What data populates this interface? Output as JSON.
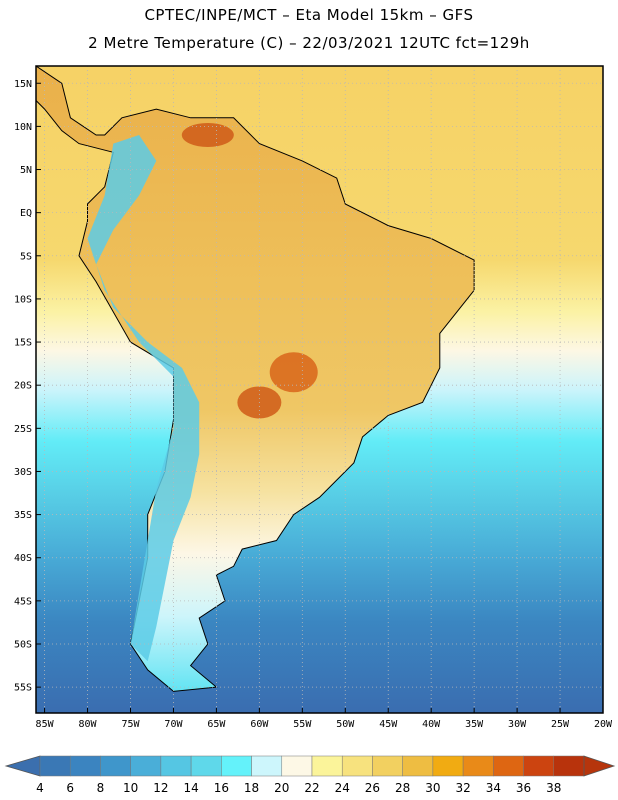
{
  "header": {
    "line1": "CPTEC/INPE/MCT –  Eta Model 15km – GFS",
    "line2": "2 Metre Temperature (C) – 22/03/2021 12UTC fct=129h"
  },
  "map": {
    "lon_range": [
      -86,
      -20
    ],
    "lat_range": [
      -58,
      17
    ],
    "lat_ticks": [
      {
        "v": 15,
        "label": "15N"
      },
      {
        "v": 10,
        "label": "10N"
      },
      {
        "v": 5,
        "label": "5N"
      },
      {
        "v": 0,
        "label": "EQ"
      },
      {
        "v": -5,
        "label": "5S"
      },
      {
        "v": -10,
        "label": "10S"
      },
      {
        "v": -15,
        "label": "15S"
      },
      {
        "v": -20,
        "label": "20S"
      },
      {
        "v": -25,
        "label": "25S"
      },
      {
        "v": -30,
        "label": "30S"
      },
      {
        "v": -35,
        "label": "35S"
      },
      {
        "v": -40,
        "label": "40S"
      },
      {
        "v": -45,
        "label": "45S"
      },
      {
        "v": -50,
        "label": "50S"
      },
      {
        "v": -55,
        "label": "55S"
      }
    ],
    "lon_ticks": [
      {
        "v": -85,
        "label": "85W"
      },
      {
        "v": -80,
        "label": "80W"
      },
      {
        "v": -75,
        "label": "75W"
      },
      {
        "v": -70,
        "label": "70W"
      },
      {
        "v": -65,
        "label": "65W"
      },
      {
        "v": -60,
        "label": "60W"
      },
      {
        "v": -55,
        "label": "55W"
      },
      {
        "v": -50,
        "label": "50W"
      },
      {
        "v": -45,
        "label": "45W"
      },
      {
        "v": -40,
        "label": "40W"
      },
      {
        "v": -35,
        "label": "35W"
      },
      {
        "v": -30,
        "label": "30W"
      },
      {
        "v": -25,
        "label": "25W"
      },
      {
        "v": -20,
        "label": "20W"
      }
    ]
  },
  "colorbar": {
    "labels": [
      "4",
      "6",
      "8",
      "10",
      "12",
      "14",
      "16",
      "18",
      "20",
      "22",
      "24",
      "26",
      "28",
      "30",
      "32",
      "34",
      "36",
      "38"
    ],
    "colors": [
      "#3a78b5",
      "#3b84c0",
      "#3f96cb",
      "#4aaed8",
      "#55c6e3",
      "#5fd8ea",
      "#64f2fa",
      "#cdf6fc",
      "#fdf8e6",
      "#fbf49a",
      "#f7e27e",
      "#f2d060",
      "#eebd42",
      "#f1ab12",
      "#e98a18",
      "#de6612",
      "#cc4410",
      "#b8330c"
    ],
    "low_color": "#3b6fae",
    "high_color": "#b6350c"
  },
  "colors": {
    "land_outline": "#000000",
    "grid": "#b8b8b8"
  }
}
